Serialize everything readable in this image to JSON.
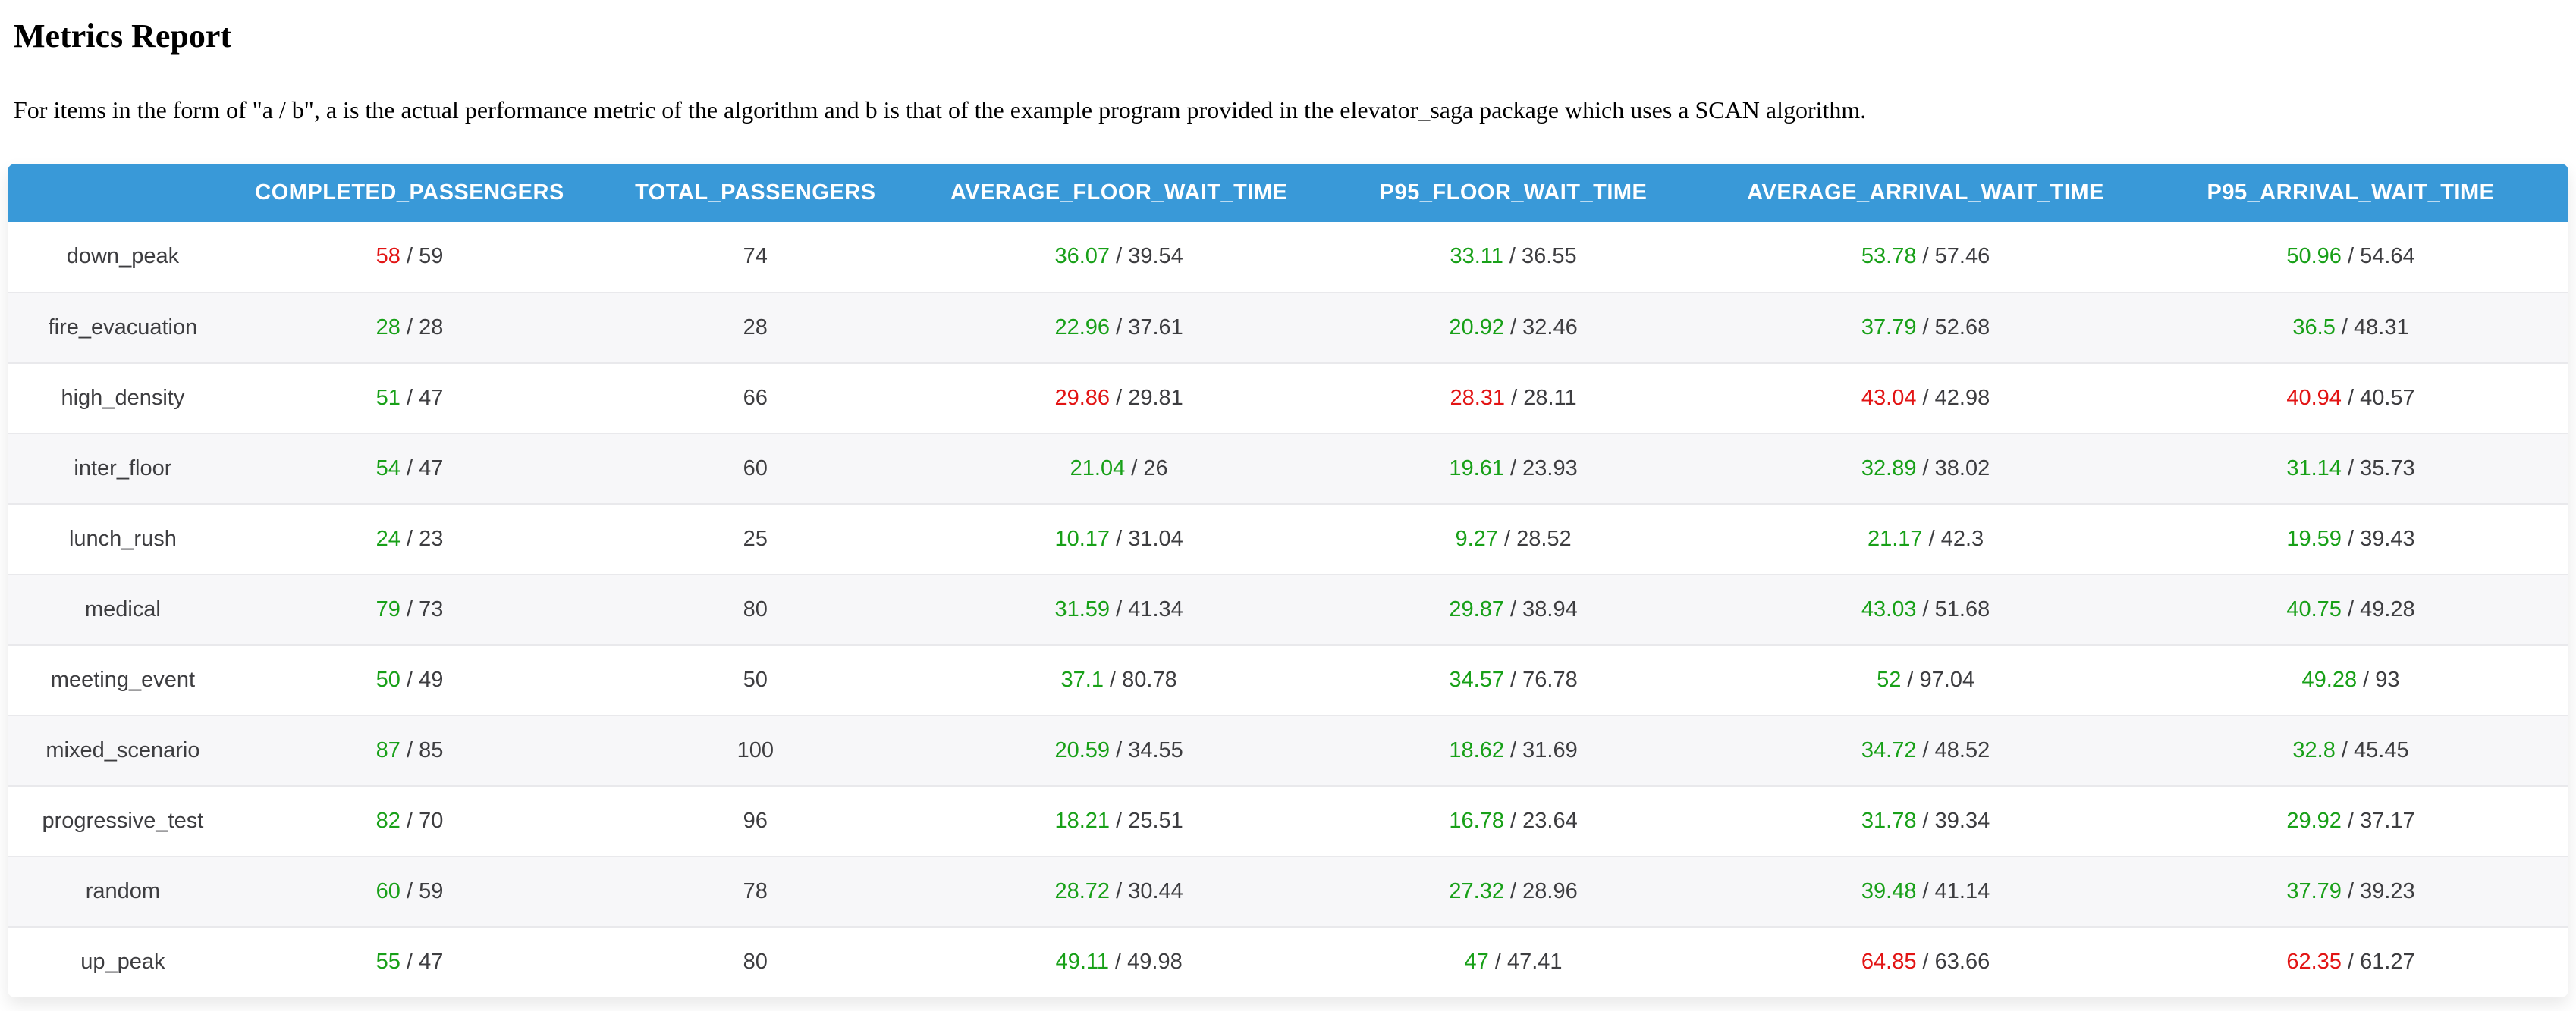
{
  "page": {
    "title": "Metrics Report",
    "description": "For items in the form of \"a / b\", a is the actual performance metric of the algorithm and b is that of the example program provided in the elevator_saga package which uses a SCAN algorithm."
  },
  "colors": {
    "header_bg": "#3999d8",
    "header_text": "#ffffff",
    "better_value": "#18a018",
    "worse_value": "#e21414",
    "body_text": "#3d3d40",
    "row_alt_bg": "#f7f7f9",
    "row_border": "#e9e9ec"
  },
  "table": {
    "columns": [
      {
        "key": "scenario",
        "label": ""
      },
      {
        "key": "completed_passengers",
        "label": "COMPLETED_PASSENGERS"
      },
      {
        "key": "total_passengers",
        "label": "TOTAL_PASSENGERS"
      },
      {
        "key": "average_floor_wait_time",
        "label": "AVERAGE_FLOOR_WAIT_TIME"
      },
      {
        "key": "p95_floor_wait_time",
        "label": "P95_FLOOR_WAIT_TIME"
      },
      {
        "key": "average_arrival_wait_time",
        "label": "AVERAGE_ARRIVAL_WAIT_TIME"
      },
      {
        "key": "p95_arrival_wait_time",
        "label": "P95_ARRIVAL_WAIT_TIME"
      }
    ],
    "rows": [
      {
        "scenario": "down_peak",
        "completed_passengers": {
          "a": "58",
          "b": "59",
          "a_color": "worse"
        },
        "total_passengers": "74",
        "average_floor_wait_time": {
          "a": "36.07",
          "b": "39.54",
          "a_color": "better"
        },
        "p95_floor_wait_time": {
          "a": "33.11",
          "b": "36.55",
          "a_color": "better"
        },
        "average_arrival_wait_time": {
          "a": "53.78",
          "b": "57.46",
          "a_color": "better"
        },
        "p95_arrival_wait_time": {
          "a": "50.96",
          "b": "54.64",
          "a_color": "better"
        }
      },
      {
        "scenario": "fire_evacuation",
        "completed_passengers": {
          "a": "28",
          "b": "28",
          "a_color": "better"
        },
        "total_passengers": "28",
        "average_floor_wait_time": {
          "a": "22.96",
          "b": "37.61",
          "a_color": "better"
        },
        "p95_floor_wait_time": {
          "a": "20.92",
          "b": "32.46",
          "a_color": "better"
        },
        "average_arrival_wait_time": {
          "a": "37.79",
          "b": "52.68",
          "a_color": "better"
        },
        "p95_arrival_wait_time": {
          "a": "36.5",
          "b": "48.31",
          "a_color": "better"
        }
      },
      {
        "scenario": "high_density",
        "completed_passengers": {
          "a": "51",
          "b": "47",
          "a_color": "better"
        },
        "total_passengers": "66",
        "average_floor_wait_time": {
          "a": "29.86",
          "b": "29.81",
          "a_color": "worse"
        },
        "p95_floor_wait_time": {
          "a": "28.31",
          "b": "28.11",
          "a_color": "worse"
        },
        "average_arrival_wait_time": {
          "a": "43.04",
          "b": "42.98",
          "a_color": "worse"
        },
        "p95_arrival_wait_time": {
          "a": "40.94",
          "b": "40.57",
          "a_color": "worse"
        }
      },
      {
        "scenario": "inter_floor",
        "completed_passengers": {
          "a": "54",
          "b": "47",
          "a_color": "better"
        },
        "total_passengers": "60",
        "average_floor_wait_time": {
          "a": "21.04",
          "b": "26",
          "a_color": "better"
        },
        "p95_floor_wait_time": {
          "a": "19.61",
          "b": "23.93",
          "a_color": "better"
        },
        "average_arrival_wait_time": {
          "a": "32.89",
          "b": "38.02",
          "a_color": "better"
        },
        "p95_arrival_wait_time": {
          "a": "31.14",
          "b": "35.73",
          "a_color": "better"
        }
      },
      {
        "scenario": "lunch_rush",
        "completed_passengers": {
          "a": "24",
          "b": "23",
          "a_color": "better"
        },
        "total_passengers": "25",
        "average_floor_wait_time": {
          "a": "10.17",
          "b": "31.04",
          "a_color": "better"
        },
        "p95_floor_wait_time": {
          "a": "9.27",
          "b": "28.52",
          "a_color": "better"
        },
        "average_arrival_wait_time": {
          "a": "21.17",
          "b": "42.3",
          "a_color": "better"
        },
        "p95_arrival_wait_time": {
          "a": "19.59",
          "b": "39.43",
          "a_color": "better"
        }
      },
      {
        "scenario": "medical",
        "completed_passengers": {
          "a": "79",
          "b": "73",
          "a_color": "better"
        },
        "total_passengers": "80",
        "average_floor_wait_time": {
          "a": "31.59",
          "b": "41.34",
          "a_color": "better"
        },
        "p95_floor_wait_time": {
          "a": "29.87",
          "b": "38.94",
          "a_color": "better"
        },
        "average_arrival_wait_time": {
          "a": "43.03",
          "b": "51.68",
          "a_color": "better"
        },
        "p95_arrival_wait_time": {
          "a": "40.75",
          "b": "49.28",
          "a_color": "better"
        }
      },
      {
        "scenario": "meeting_event",
        "completed_passengers": {
          "a": "50",
          "b": "49",
          "a_color": "better"
        },
        "total_passengers": "50",
        "average_floor_wait_time": {
          "a": "37.1",
          "b": "80.78",
          "a_color": "better"
        },
        "p95_floor_wait_time": {
          "a": "34.57",
          "b": "76.78",
          "a_color": "better"
        },
        "average_arrival_wait_time": {
          "a": "52",
          "b": "97.04",
          "a_color": "better"
        },
        "p95_arrival_wait_time": {
          "a": "49.28",
          "b": "93",
          "a_color": "better"
        }
      },
      {
        "scenario": "mixed_scenario",
        "completed_passengers": {
          "a": "87",
          "b": "85",
          "a_color": "better"
        },
        "total_passengers": "100",
        "average_floor_wait_time": {
          "a": "20.59",
          "b": "34.55",
          "a_color": "better"
        },
        "p95_floor_wait_time": {
          "a": "18.62",
          "b": "31.69",
          "a_color": "better"
        },
        "average_arrival_wait_time": {
          "a": "34.72",
          "b": "48.52",
          "a_color": "better"
        },
        "p95_arrival_wait_time": {
          "a": "32.8",
          "b": "45.45",
          "a_color": "better"
        }
      },
      {
        "scenario": "progressive_test",
        "completed_passengers": {
          "a": "82",
          "b": "70",
          "a_color": "better"
        },
        "total_passengers": "96",
        "average_floor_wait_time": {
          "a": "18.21",
          "b": "25.51",
          "a_color": "better"
        },
        "p95_floor_wait_time": {
          "a": "16.78",
          "b": "23.64",
          "a_color": "better"
        },
        "average_arrival_wait_time": {
          "a": "31.78",
          "b": "39.34",
          "a_color": "better"
        },
        "p95_arrival_wait_time": {
          "a": "29.92",
          "b": "37.17",
          "a_color": "better"
        }
      },
      {
        "scenario": "random",
        "completed_passengers": {
          "a": "60",
          "b": "59",
          "a_color": "better"
        },
        "total_passengers": "78",
        "average_floor_wait_time": {
          "a": "28.72",
          "b": "30.44",
          "a_color": "better"
        },
        "p95_floor_wait_time": {
          "a": "27.32",
          "b": "28.96",
          "a_color": "better"
        },
        "average_arrival_wait_time": {
          "a": "39.48",
          "b": "41.14",
          "a_color": "better"
        },
        "p95_arrival_wait_time": {
          "a": "37.79",
          "b": "39.23",
          "a_color": "better"
        }
      },
      {
        "scenario": "up_peak",
        "completed_passengers": {
          "a": "55",
          "b": "47",
          "a_color": "better"
        },
        "total_passengers": "80",
        "average_floor_wait_time": {
          "a": "49.11",
          "b": "49.98",
          "a_color": "better"
        },
        "p95_floor_wait_time": {
          "a": "47",
          "b": "47.41",
          "a_color": "better"
        },
        "average_arrival_wait_time": {
          "a": "64.85",
          "b": "63.66",
          "a_color": "worse"
        },
        "p95_arrival_wait_time": {
          "a": "62.35",
          "b": "61.27",
          "a_color": "worse"
        }
      }
    ]
  }
}
